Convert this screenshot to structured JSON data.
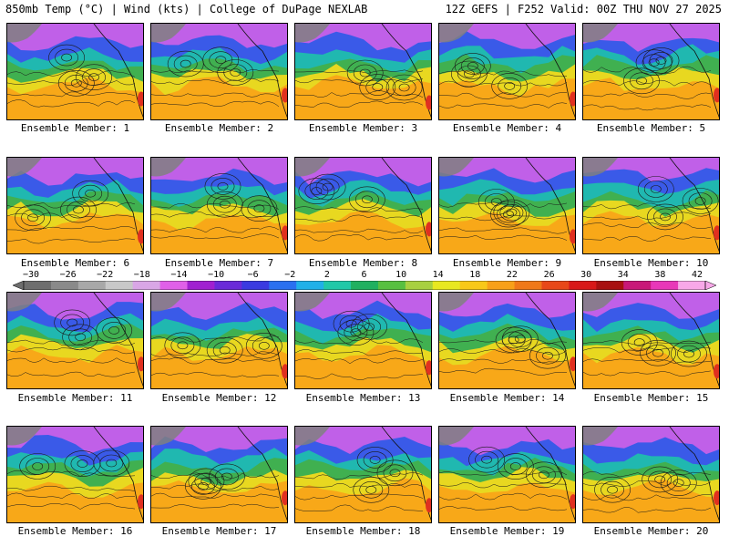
{
  "header": {
    "title": "850mb Temp (°C) | Wind (kts) | College of DuPage NEXLAB",
    "run_info": "12Z GEFS | F252 Valid: 00Z THU NOV 27 2025"
  },
  "panels": [
    {
      "label": "Ensemble Member: 1"
    },
    {
      "label": "Ensemble Member: 2"
    },
    {
      "label": "Ensemble Member: 3"
    },
    {
      "label": "Ensemble Member: 4"
    },
    {
      "label": "Ensemble Member: 5"
    },
    {
      "label": "Ensemble Member: 6"
    },
    {
      "label": "Ensemble Member: 7"
    },
    {
      "label": "Ensemble Member: 8"
    },
    {
      "label": "Ensemble Member: 9"
    },
    {
      "label": "Ensemble Member: 10"
    },
    {
      "label": "Ensemble Member: 11"
    },
    {
      "label": "Ensemble Member: 12"
    },
    {
      "label": "Ensemble Member: 13"
    },
    {
      "label": "Ensemble Member: 14"
    },
    {
      "label": "Ensemble Member: 15"
    },
    {
      "label": "Ensemble Member: 16"
    },
    {
      "label": "Ensemble Member: 17"
    },
    {
      "label": "Ensemble Member: 18"
    },
    {
      "label": "Ensemble Member: 19"
    },
    {
      "label": "Ensemble Member: 20"
    }
  ],
  "colorbar": {
    "labels": [
      "−30",
      "−26",
      "−22",
      "−18",
      "−14",
      "−10",
      "−6",
      "−2",
      "2",
      "6",
      "10",
      "14",
      "18",
      "22",
      "26",
      "30",
      "34",
      "38",
      "42"
    ],
    "colors": [
      "#6e6e6e",
      "#8a8a8a",
      "#a8a8a8",
      "#c8c8c8",
      "#d9a6e6",
      "#e060e8",
      "#a020d0",
      "#6a2ad8",
      "#3a3ae0",
      "#2a70f0",
      "#20b0e8",
      "#20c8a8",
      "#20b060",
      "#58c040",
      "#a8d040",
      "#e8e820",
      "#f8c818",
      "#f8a018",
      "#f07818",
      "#e84818",
      "#d81818",
      "#a81010",
      "#c81878",
      "#e838b8",
      "#f8a8e8"
    ]
  },
  "map_colors": {
    "cold": "#c060e8",
    "cool": "#3a5ae8",
    "mid": "#20b8b0",
    "mild": "#40b050",
    "warm": "#e8d820",
    "hot": "#f8a818",
    "land": "#808080",
    "accent": "#e03020"
  }
}
